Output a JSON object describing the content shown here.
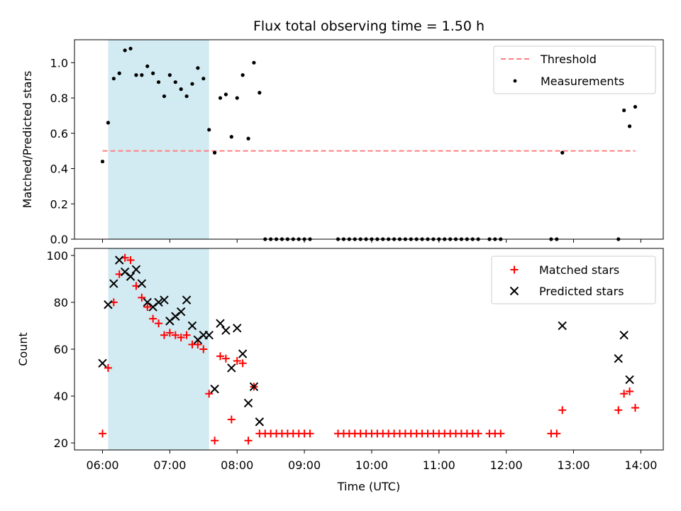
{
  "figure": {
    "title": "Flux total observing time = 1.50 h"
  },
  "colors": {
    "threshold": "#ff7f7f",
    "measurement": "#000000",
    "matched": "#ff0000",
    "predicted": "#000000",
    "highlight": "#add8e6"
  },
  "chart_data": [
    {
      "type": "scatter",
      "title": "Flux total observing time = 1.50 h",
      "xlabel": "",
      "ylabel": "Matched/Predicted stars",
      "xlim": [
        "05:35",
        "14:20"
      ],
      "ylim": [
        0,
        1.13
      ],
      "yticks": [
        "0.0",
        "0.2",
        "0.4",
        "0.6",
        "0.8",
        "1.0"
      ],
      "grid": false,
      "legend_position": "top-right",
      "highlight_span": [
        "06:05",
        "07:35"
      ],
      "threshold": {
        "name": "Threshold",
        "value": 0.5,
        "x_range": [
          "06:00",
          "13:55"
        ],
        "style": "dashed"
      },
      "series": [
        {
          "name": "Measurements",
          "x": [
            "06:00",
            "06:05",
            "06:10",
            "06:15",
            "06:20",
            "06:25",
            "06:30",
            "06:35",
            "06:40",
            "06:45",
            "06:50",
            "06:55",
            "07:00",
            "07:05",
            "07:10",
            "07:15",
            "07:20",
            "07:25",
            "07:30",
            "07:35",
            "07:40",
            "07:45",
            "07:50",
            "07:55",
            "08:00",
            "08:05",
            "08:10",
            "08:15",
            "08:20",
            "08:25",
            "08:30",
            "08:35",
            "08:40",
            "08:45",
            "08:50",
            "08:55",
            "09:00",
            "09:05",
            "09:30",
            "09:35",
            "09:40",
            "09:45",
            "09:50",
            "09:55",
            "10:00",
            "10:05",
            "10:10",
            "10:15",
            "10:20",
            "10:25",
            "10:30",
            "10:35",
            "10:40",
            "10:45",
            "10:50",
            "10:55",
            "11:00",
            "11:05",
            "11:10",
            "11:15",
            "11:20",
            "11:25",
            "11:30",
            "11:35",
            "11:45",
            "11:50",
            "11:55",
            "12:40",
            "12:45",
            "12:50",
            "13:40",
            "13:45",
            "13:50"
          ],
          "y": [
            0.44,
            0.66,
            0.91,
            0.94,
            1.07,
            1.08,
            0.93,
            0.93,
            0.98,
            0.94,
            0.89,
            0.81,
            0.93,
            0.89,
            0.85,
            0.81,
            0.88,
            0.97,
            0.91,
            0.62,
            0.49,
            0.8,
            0.82,
            0.58,
            0.8,
            0.93,
            0.57,
            1.0,
            0.83,
            0,
            0,
            0,
            0,
            0,
            0,
            0,
            0,
            0,
            0,
            0,
            0,
            0,
            0,
            0,
            0,
            0,
            0,
            0,
            0,
            0,
            0,
            0,
            0,
            0,
            0,
            0,
            0,
            0,
            0,
            0,
            0,
            0,
            0,
            0,
            0,
            0,
            0,
            0,
            0,
            0.49,
            0,
            0.73,
            0.64
          ]
        }
      ],
      "extra_points": [
        {
          "x": "13:55",
          "y": 0.75
        }
      ]
    },
    {
      "type": "scatter",
      "xlabel": "Time (UTC)",
      "ylabel": "Count",
      "xlim": [
        "05:35",
        "14:20"
      ],
      "ylim": [
        17,
        103
      ],
      "yticks": [
        "20",
        "40",
        "60",
        "80",
        "100"
      ],
      "xticks": [
        "06:00",
        "07:00",
        "08:00",
        "09:00",
        "10:00",
        "11:00",
        "12:00",
        "13:00",
        "14:00"
      ],
      "grid": false,
      "legend_position": "top-right",
      "highlight_span": [
        "06:05",
        "07:35"
      ],
      "series": [
        {
          "name": "Matched stars",
          "marker": "plus",
          "x": [
            "06:00",
            "06:05",
            "06:10",
            "06:15",
            "06:20",
            "06:25",
            "06:30",
            "06:35",
            "06:40",
            "06:45",
            "06:50",
            "06:55",
            "07:00",
            "07:05",
            "07:10",
            "07:15",
            "07:20",
            "07:25",
            "07:30",
            "07:35",
            "07:40",
            "07:45",
            "07:50",
            "07:55",
            "08:00",
            "08:05",
            "08:10",
            "08:15",
            "08:20",
            "08:25",
            "08:30",
            "08:35",
            "08:40",
            "08:45",
            "08:50",
            "08:55",
            "09:00",
            "09:05",
            "09:30",
            "09:35",
            "09:40",
            "09:45",
            "09:50",
            "09:55",
            "10:00",
            "10:05",
            "10:10",
            "10:15",
            "10:20",
            "10:25",
            "10:30",
            "10:35",
            "10:40",
            "10:45",
            "10:50",
            "10:55",
            "11:00",
            "11:05",
            "11:10",
            "11:15",
            "11:20",
            "11:25",
            "11:30",
            "11:35",
            "11:45",
            "11:50",
            "11:55",
            "12:40",
            "12:45",
            "12:50",
            "13:40",
            "13:45",
            "13:50",
            "13:55"
          ],
          "y": [
            24,
            52,
            80,
            92,
            99,
            98,
            87,
            82,
            78,
            73,
            71,
            66,
            67,
            66,
            65,
            66,
            62,
            62,
            60,
            41,
            21,
            57,
            56,
            30,
            55,
            54,
            21,
            44,
            24,
            24,
            24,
            24,
            24,
            24,
            24,
            24,
            24,
            24,
            24,
            24,
            24,
            24,
            24,
            24,
            24,
            24,
            24,
            24,
            24,
            24,
            24,
            24,
            24,
            24,
            24,
            24,
            24,
            24,
            24,
            24,
            24,
            24,
            24,
            24,
            24,
            24,
            24,
            24,
            24,
            34,
            34,
            41,
            42,
            35
          ]
        },
        {
          "name": "Predicted stars",
          "marker": "x",
          "x": [
            "06:00",
            "06:05",
            "06:10",
            "06:15",
            "06:20",
            "06:25",
            "06:30",
            "06:35",
            "06:40",
            "06:45",
            "06:50",
            "06:55",
            "07:00",
            "07:05",
            "07:10",
            "07:15",
            "07:20",
            "07:25",
            "07:30",
            "07:35",
            "07:40",
            "07:45",
            "07:50",
            "07:55",
            "08:00",
            "08:05",
            "08:10",
            "08:15",
            "08:20",
            "12:50",
            "13:40",
            "13:45",
            "13:50"
          ],
          "y": [
            54,
            79,
            88,
            98,
            93,
            91,
            94,
            88,
            80,
            78,
            80,
            81,
            72,
            74,
            76,
            81,
            70,
            64,
            66,
            66,
            43,
            71,
            68,
            52,
            69,
            58,
            37,
            44,
            29,
            70,
            56,
            66,
            47
          ]
        }
      ]
    }
  ]
}
